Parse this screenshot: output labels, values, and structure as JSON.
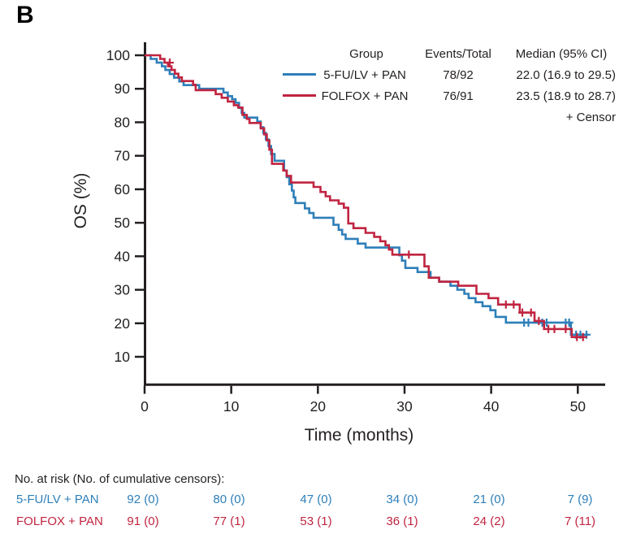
{
  "figure": {
    "panel_label": "B"
  },
  "chart_data": {
    "type": "line",
    "subtype": "kaplan-meier-step-survival",
    "xlabel": "Time (months)",
    "ylabel": "OS (%)",
    "grid": false,
    "xaxis": {
      "ticks": [
        0,
        10,
        20,
        30,
        40,
        50
      ],
      "range": [
        0,
        53
      ]
    },
    "yaxis": {
      "ticks": [
        10,
        20,
        30,
        40,
        50,
        60,
        70,
        80,
        90,
        100
      ],
      "range": [
        0,
        100
      ]
    },
    "legend": {
      "position": "top-right",
      "col_group": "Group",
      "col_events": "Events/Total",
      "col_median": "Median (95% CI)",
      "censor_note": "+ Censor"
    },
    "series": [
      {
        "name": "5-FU/LV + PAN",
        "color": "#2e7fb9",
        "events_total": "78/92",
        "median_ci": "22.0 (16.9 to 29.5)",
        "steps": [
          [
            0,
            100
          ],
          [
            0.7,
            98.9
          ],
          [
            1.4,
            97.8
          ],
          [
            2.0,
            96.7
          ],
          [
            2.4,
            95.6
          ],
          [
            2.9,
            94.4
          ],
          [
            3.4,
            93.3
          ],
          [
            4.0,
            92.2
          ],
          [
            4.5,
            91.1
          ],
          [
            6.3,
            90.0
          ],
          [
            9.1,
            88.9
          ],
          [
            9.6,
            87.8
          ],
          [
            10.1,
            86.9
          ],
          [
            10.5,
            85.8
          ],
          [
            10.9,
            84.3
          ],
          [
            11.2,
            82.8
          ],
          [
            11.5,
            81.4
          ],
          [
            13.0,
            80.2
          ],
          [
            13.4,
            78.5
          ],
          [
            13.7,
            76.8
          ],
          [
            14.0,
            74.9
          ],
          [
            14.3,
            72.9
          ],
          [
            14.6,
            70.5
          ],
          [
            15.0,
            68.5
          ],
          [
            16.1,
            65.6
          ],
          [
            16.4,
            63.6
          ],
          [
            16.7,
            61.5
          ],
          [
            17.0,
            59.6
          ],
          [
            17.2,
            57.6
          ],
          [
            17.4,
            55.9
          ],
          [
            18.5,
            54.3
          ],
          [
            19.0,
            52.9
          ],
          [
            19.5,
            51.5
          ],
          [
            21.8,
            49.4
          ],
          [
            22.4,
            47.9
          ],
          [
            22.8,
            46.5
          ],
          [
            23.2,
            45.2
          ],
          [
            24.6,
            43.8
          ],
          [
            25.5,
            42.6
          ],
          [
            29.4,
            40.3
          ],
          [
            29.7,
            38.7
          ],
          [
            30.1,
            36.5
          ],
          [
            31.5,
            35.3
          ],
          [
            33.0,
            33.6
          ],
          [
            34.0,
            32.4
          ],
          [
            35.3,
            31.2
          ],
          [
            36.1,
            30.0
          ],
          [
            36.9,
            28.8
          ],
          [
            37.4,
            27.5
          ],
          [
            38.2,
            26.3
          ],
          [
            39.0,
            25.1
          ],
          [
            39.9,
            23.9
          ],
          [
            40.5,
            21.9
          ],
          [
            41.7,
            20.2
          ],
          [
            49.2,
            16.6
          ],
          [
            51.2,
            16.6
          ]
        ],
        "censors": [
          [
            43.8,
            20.2
          ],
          [
            44.3,
            20.2
          ],
          [
            45.9,
            20.2
          ],
          [
            46.4,
            20.2
          ],
          [
            48.6,
            20.2
          ],
          [
            49.0,
            20.2
          ],
          [
            49.8,
            16.6
          ],
          [
            50.3,
            16.6
          ],
          [
            51.0,
            16.6
          ]
        ]
      },
      {
        "name": "FOLFOX + PAN",
        "color": "#c02440",
        "events_total": "76/91",
        "median_ci": "23.5 (18.9 to 28.7)",
        "steps": [
          [
            0,
            100
          ],
          [
            1.8,
            98.9
          ],
          [
            2.3,
            97.8
          ],
          [
            2.7,
            96.7
          ],
          [
            3.1,
            95.6
          ],
          [
            3.5,
            94.5
          ],
          [
            3.9,
            93.4
          ],
          [
            4.3,
            92.3
          ],
          [
            5.6,
            91.2
          ],
          [
            5.9,
            89.6
          ],
          [
            8.2,
            88.4
          ],
          [
            8.9,
            87.3
          ],
          [
            9.6,
            86.2
          ],
          [
            10.3,
            85.1
          ],
          [
            10.8,
            84.4
          ],
          [
            11.3,
            82.2
          ],
          [
            11.8,
            81.0
          ],
          [
            12.1,
            79.8
          ],
          [
            13.4,
            78.2
          ],
          [
            13.8,
            76.4
          ],
          [
            14.1,
            74.6
          ],
          [
            14.4,
            71.8
          ],
          [
            14.7,
            67.6
          ],
          [
            16.0,
            65.6
          ],
          [
            16.4,
            64.0
          ],
          [
            16.9,
            62.0
          ],
          [
            19.5,
            60.7
          ],
          [
            20.3,
            59.2
          ],
          [
            20.9,
            57.9
          ],
          [
            21.4,
            56.7
          ],
          [
            22.4,
            55.7
          ],
          [
            23.0,
            54.5
          ],
          [
            23.5,
            49.8
          ],
          [
            24.1,
            48.4
          ],
          [
            25.5,
            47.0
          ],
          [
            26.5,
            45.8
          ],
          [
            27.2,
            44.5
          ],
          [
            27.8,
            43.3
          ],
          [
            28.2,
            42.0
          ],
          [
            28.6,
            40.5
          ],
          [
            32.3,
            37.0
          ],
          [
            32.8,
            33.6
          ],
          [
            34.0,
            32.4
          ],
          [
            36.2,
            31.2
          ],
          [
            38.3,
            28.8
          ],
          [
            39.7,
            27.5
          ],
          [
            40.8,
            25.6
          ],
          [
            43.3,
            23.2
          ],
          [
            45.0,
            20.7
          ],
          [
            46.1,
            18.3
          ],
          [
            49.3,
            15.9
          ],
          [
            50.8,
            15.9
          ]
        ],
        "censors": [
          [
            2.9,
            97.8
          ],
          [
            30.5,
            40.5
          ],
          [
            41.7,
            25.6
          ],
          [
            42.6,
            25.6
          ],
          [
            43.6,
            23.2
          ],
          [
            44.6,
            23.2
          ],
          [
            45.5,
            20.7
          ],
          [
            46.6,
            18.3
          ],
          [
            47.3,
            18.3
          ],
          [
            48.6,
            18.3
          ],
          [
            49.9,
            15.9
          ],
          [
            50.6,
            15.9
          ]
        ]
      }
    ]
  },
  "risk_table": {
    "header": "No. at risk (No. of cumulative censors):",
    "timepoints": [
      0,
      10,
      20,
      30,
      40,
      50
    ],
    "rows": [
      {
        "label": "5-FU/LV + PAN",
        "color": "#2e7fb9",
        "values": [
          "92 (0)",
          "80 (0)",
          "47 (0)",
          "34 (0)",
          "21 (0)",
          "7 (9)"
        ]
      },
      {
        "label": "FOLFOX + PAN",
        "color": "#c02440",
        "values": [
          "91 (0)",
          "77 (1)",
          "53 (1)",
          "36 (1)",
          "24 (2)",
          "7 (11)"
        ]
      }
    ]
  },
  "colors": {
    "axis": "#231f20",
    "text": "#1a1a1a",
    "background": "#ffffff"
  }
}
